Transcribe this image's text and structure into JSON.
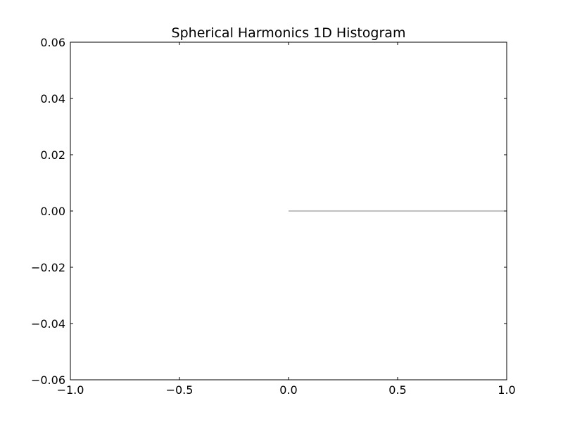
{
  "chart_data": {
    "type": "line",
    "title": "Spherical Harmonics 1D Histogram",
    "xlabel": "",
    "ylabel": "",
    "xlim": [
      -1.0,
      1.0
    ],
    "ylim": [
      -0.06,
      0.06
    ],
    "x_ticks": [
      -1.0,
      -0.5,
      0.0,
      0.5,
      1.0
    ],
    "x_tick_labels": [
      "−1.0",
      "−0.5",
      "0.0",
      "0.5",
      "1.0"
    ],
    "y_ticks": [
      -0.06,
      -0.04,
      -0.02,
      0.0,
      0.02,
      0.04,
      0.06
    ],
    "y_tick_labels": [
      "−0.06",
      "−0.04",
      "−0.02",
      "0.00",
      "0.02",
      "0.04",
      "0.06"
    ],
    "grid": false,
    "series": [
      {
        "x": [
          0.0,
          1.0
        ],
        "y": [
          0.0,
          0.0
        ],
        "color": "#808080"
      }
    ]
  }
}
